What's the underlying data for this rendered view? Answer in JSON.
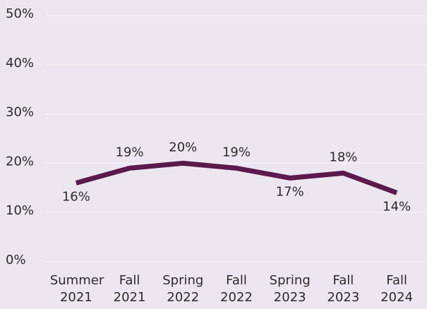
{
  "chart_data": {
    "type": "line",
    "categories": [
      "Summer 2021",
      "Fall 2021",
      "Spring 2022",
      "Fall 2022",
      "Spring 2023",
      "Fall 2023",
      "Fall 2024"
    ],
    "series": [
      {
        "color": "#5a1a4c",
        "values": [
          16,
          19,
          20,
          19,
          17,
          18,
          14
        ],
        "value_labels": [
          "16%",
          "19%",
          "20%",
          "19%",
          "17%",
          "18%",
          "14%"
        ]
      }
    ],
    "ylim": [
      0,
      50
    ],
    "yticks": [
      {
        "value": 0,
        "label": "0%"
      },
      {
        "value": 10,
        "label": "10%"
      },
      {
        "value": 20,
        "label": "20%"
      },
      {
        "value": 30,
        "label": "30%"
      },
      {
        "value": 40,
        "label": "40%"
      },
      {
        "value": 50,
        "label": "50%"
      }
    ],
    "grid": true
  }
}
